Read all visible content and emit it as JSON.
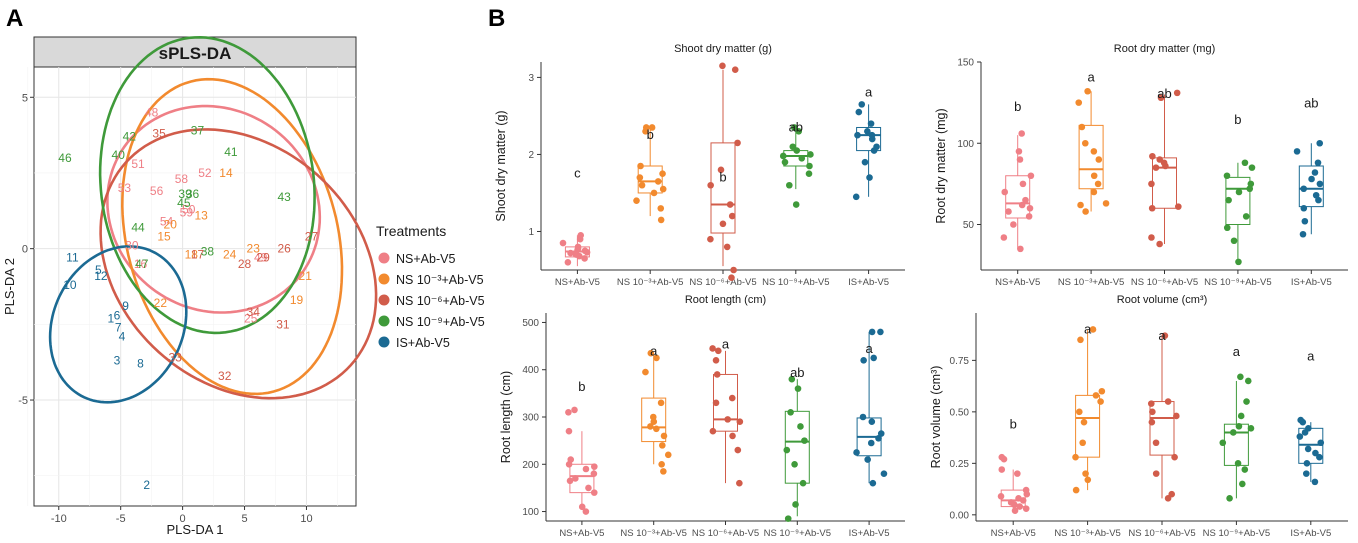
{
  "colors": {
    "NS+Ab-V5": "#ef7f86",
    "NS 10⁻³+Ab-V5": "#f28a2e",
    "NS 10⁻⁶+Ab-V5": "#d15c4a",
    "NS 10⁻⁹+Ab-V5": "#3f9a3a",
    "IS+Ab-V5": "#1b6a93"
  },
  "panel_a": {
    "letter": "A",
    "strip_title": "sPLS-DA",
    "legend_title": "Treatments",
    "legend_items": [
      "NS+Ab-V5",
      "NS 10⁻³+Ab-V5",
      "NS 10⁻⁶+Ab-V5",
      "NS 10⁻⁹+Ab-V5",
      "IS+Ab-V5"
    ]
  },
  "panel_b": {
    "letter": "B"
  },
  "chart_data": [
    {
      "type": "scatter",
      "title": "sPLS-DA",
      "xlabel": "PLS-DA 1",
      "ylabel": "PLS-DA 2",
      "xlim": [
        -12,
        14
      ],
      "ylim": [
        -8.5,
        6
      ],
      "xticks": [
        -10,
        -5,
        0,
        5,
        10
      ],
      "yticks": [
        -5,
        0,
        5
      ],
      "points": [
        {
          "label": "48",
          "x": -2.5,
          "y": 4.5,
          "group": 0
        },
        {
          "label": "51",
          "x": -3.6,
          "y": 2.8,
          "group": 0
        },
        {
          "label": "53",
          "x": -4.7,
          "y": 2,
          "group": 0
        },
        {
          "label": "56",
          "x": -2.1,
          "y": 1.9,
          "group": 0
        },
        {
          "label": "58",
          "x": -0.1,
          "y": 2.3,
          "group": 0
        },
        {
          "label": "54",
          "x": -1.3,
          "y": 0.9,
          "group": 0
        },
        {
          "label": "30",
          "x": -4.1,
          "y": 0.1,
          "group": 0
        },
        {
          "label": "50",
          "x": 0.5,
          "y": 1.3,
          "group": 0
        },
        {
          "label": "59",
          "x": 0.3,
          "y": 1.2,
          "group": 0
        },
        {
          "label": "52",
          "x": 1.8,
          "y": 2.5,
          "group": 0
        },
        {
          "label": "49",
          "x": 6.3,
          "y": -0.3,
          "group": 0
        },
        {
          "label": "16",
          "x": -3.4,
          "y": -0.5,
          "group": 0
        },
        {
          "label": "25",
          "x": 5.5,
          "y": -2.3,
          "group": 0
        },
        {
          "label": "14",
          "x": 3.5,
          "y": 2.5,
          "group": 1
        },
        {
          "label": "20",
          "x": -1,
          "y": 0.8,
          "group": 1
        },
        {
          "label": "15",
          "x": -1.5,
          "y": 0.4,
          "group": 1
        },
        {
          "label": "13",
          "x": 1.5,
          "y": 1.1,
          "group": 1
        },
        {
          "label": "23",
          "x": 5.7,
          "y": 0,
          "group": 1
        },
        {
          "label": "24",
          "x": 3.8,
          "y": -0.2,
          "group": 1
        },
        {
          "label": "18",
          "x": 0.7,
          "y": -0.2,
          "group": 1
        },
        {
          "label": "21",
          "x": 9.9,
          "y": -0.9,
          "group": 1
        },
        {
          "label": "19",
          "x": 9.2,
          "y": -1.7,
          "group": 1
        },
        {
          "label": "22",
          "x": -1.8,
          "y": -1.8,
          "group": 1
        },
        {
          "label": "35",
          "x": -1.9,
          "y": 3.8,
          "group": 2
        },
        {
          "label": "27",
          "x": 10.4,
          "y": 0.4,
          "group": 2
        },
        {
          "label": "26",
          "x": 8.2,
          "y": 0,
          "group": 2
        },
        {
          "label": "29",
          "x": 6.5,
          "y": -0.3,
          "group": 2
        },
        {
          "label": "28",
          "x": 5,
          "y": -0.5,
          "group": 2
        },
        {
          "label": "17",
          "x": 1.2,
          "y": -0.2,
          "group": 2
        },
        {
          "label": "34",
          "x": 5.7,
          "y": -2.1,
          "group": 2
        },
        {
          "label": "31",
          "x": 8.1,
          "y": -2.5,
          "group": 2
        },
        {
          "label": "33",
          "x": -0.6,
          "y": -3.6,
          "group": 2
        },
        {
          "label": "32",
          "x": 3.4,
          "y": -4.2,
          "group": 2
        },
        {
          "label": "37",
          "x": 1.2,
          "y": 3.9,
          "group": 3
        },
        {
          "label": "42",
          "x": -4.3,
          "y": 3.7,
          "group": 3
        },
        {
          "label": "41",
          "x": 3.9,
          "y": 3.2,
          "group": 3
        },
        {
          "label": "40",
          "x": -5.2,
          "y": 3.1,
          "group": 3
        },
        {
          "label": "46",
          "x": -9.5,
          "y": 3,
          "group": 3
        },
        {
          "label": "39",
          "x": 0.2,
          "y": 1.8,
          "group": 3
        },
        {
          "label": "36",
          "x": 0.8,
          "y": 1.8,
          "group": 3
        },
        {
          "label": "45",
          "x": 0.1,
          "y": 1.5,
          "group": 3
        },
        {
          "label": "43",
          "x": 8.2,
          "y": 1.7,
          "group": 3
        },
        {
          "label": "44",
          "x": -3.6,
          "y": 0.7,
          "group": 3
        },
        {
          "label": "47",
          "x": -3.3,
          "y": -0.5,
          "group": 3
        },
        {
          "label": "38",
          "x": 2,
          "y": -0.1,
          "group": 3
        },
        {
          "label": "11",
          "x": -8.9,
          "y": -0.3,
          "group": 4
        },
        {
          "label": "5",
          "x": -6.8,
          "y": -0.7,
          "group": 4
        },
        {
          "label": "12",
          "x": -6.6,
          "y": -0.9,
          "group": 4
        },
        {
          "label": "10",
          "x": -9.1,
          "y": -1.2,
          "group": 4
        },
        {
          "label": "9",
          "x": -4.6,
          "y": -1.9,
          "group": 4
        },
        {
          "label": "1",
          "x": -5.8,
          "y": -2.3,
          "group": 4
        },
        {
          "label": "6",
          "x": -5.3,
          "y": -2.2,
          "group": 4
        },
        {
          "label": "7",
          "x": -5.2,
          "y": -2.6,
          "group": 4
        },
        {
          "label": "4",
          "x": -4.9,
          "y": -2.9,
          "group": 4
        },
        {
          "label": "3",
          "x": -5.3,
          "y": -3.7,
          "group": 4
        },
        {
          "label": "8",
          "x": -3.4,
          "y": -3.8,
          "group": 4
        },
        {
          "label": "2",
          "x": -2.9,
          "y": -7.8,
          "group": 4
        }
      ],
      "ellipses": [
        {
          "group": 0,
          "cx": 2.5,
          "cy": 1.3,
          "rx": 8.1,
          "ry": 3.6,
          "angle": -55
        },
        {
          "group": 1,
          "cx": 4,
          "cy": 0.4,
          "rx": 8.5,
          "ry": 5.3,
          "angle": -15
        },
        {
          "group": 2,
          "cx": 4.5,
          "cy": -0.5,
          "rx": 9.6,
          "ry": 5,
          "angle": -48
        },
        {
          "group": 3,
          "cx": 2,
          "cy": 2.1,
          "rx": 8.6,
          "ry": 4.9,
          "angle": -7
        },
        {
          "group": 4,
          "cx": -5.2,
          "cy": -2.5,
          "rx": 6.5,
          "ry": 2.15,
          "angle": -65
        }
      ]
    },
    {
      "type": "box",
      "title": "Shoot dry matter (g)",
      "ylabel": "Shoot dry matter (g)",
      "categories": [
        "NS+Ab-V5",
        "NS 10⁻³+Ab-V5",
        "NS 10⁻⁶+Ab-V5",
        "NS 10⁻⁹+Ab-V5",
        "IS+Ab-V5"
      ],
      "ylim": [
        0.5,
        3.2
      ],
      "yticks": [
        1,
        2,
        3
      ],
      "letters": [
        "c",
        "b",
        "b",
        "ab",
        "a"
      ],
      "letter_y": [
        1.7,
        2.2,
        1.65,
        2.3,
        2.75
      ],
      "boxes": [
        {
          "min": 0.55,
          "q1": 0.67,
          "med": 0.74,
          "q3": 0.8,
          "max": 0.95
        },
        {
          "min": 1.2,
          "q1": 1.5,
          "med": 1.65,
          "q3": 1.85,
          "max": 2.35
        },
        {
          "min": 0.55,
          "q1": 0.98,
          "med": 1.35,
          "q3": 2.15,
          "max": 3.1
        },
        {
          "min": 1.55,
          "q1": 1.85,
          "med": 1.98,
          "q3": 2.05,
          "max": 2.3
        },
        {
          "min": 1.45,
          "q1": 2.05,
          "med": 2.25,
          "q3": 2.35,
          "max": 2.65
        }
      ],
      "points": [
        [
          0.6,
          0.65,
          0.68,
          0.7,
          0.72,
          0.73,
          0.75,
          0.76,
          0.78,
          0.8,
          0.85,
          0.9,
          0.95
        ],
        [
          1.15,
          1.3,
          1.4,
          1.5,
          1.55,
          1.6,
          1.65,
          1.7,
          1.75,
          1.85,
          2.3,
          2.35,
          2.35
        ],
        [
          0.4,
          0.5,
          0.8,
          0.9,
          1.1,
          1.2,
          1.35,
          1.6,
          1.8,
          2.15,
          3.1,
          3.15
        ],
        [
          1.35,
          1.6,
          1.75,
          1.85,
          1.9,
          1.95,
          1.98,
          2,
          2.05,
          2.1,
          2.3,
          2.35
        ],
        [
          1.45,
          1.7,
          1.9,
          2.05,
          2.1,
          2.2,
          2.25,
          2.25,
          2.3,
          2.4,
          2.55,
          2.65
        ]
      ]
    },
    {
      "type": "box",
      "title": "Root dry matter (mg)",
      "ylabel": "Root dry matter (mg)",
      "categories": [
        "NS+Ab-V5",
        "NS 10⁻³+Ab-V5",
        "NS 10⁻⁶+Ab-V5",
        "NS 10⁻⁹+Ab-V5",
        "IS+Ab-V5"
      ],
      "ylim": [
        22,
        150
      ],
      "yticks": [
        50,
        100,
        150
      ],
      "letters": [
        "b",
        "a",
        "ab",
        "b",
        "ab"
      ],
      "letter_y": [
        120,
        138,
        128,
        112,
        122
      ],
      "boxes": [
        {
          "min": 35,
          "q1": 54,
          "med": 63,
          "q3": 80,
          "max": 105
        },
        {
          "min": 58,
          "q1": 72,
          "med": 84,
          "q3": 111,
          "max": 132
        },
        {
          "min": 38,
          "q1": 60,
          "med": 85,
          "q3": 91,
          "max": 130
        },
        {
          "min": 28,
          "q1": 50,
          "med": 72,
          "q3": 79,
          "max": 88
        },
        {
          "min": 44,
          "q1": 61,
          "med": 72,
          "q3": 86,
          "max": 100
        }
      ],
      "points": [
        [
          35,
          42,
          50,
          55,
          58,
          60,
          62,
          65,
          70,
          75,
          80,
          90,
          95,
          106
        ],
        [
          58,
          62,
          63,
          70,
          75,
          80,
          90,
          95,
          100,
          110,
          125,
          132
        ],
        [
          38,
          42,
          60,
          61,
          75,
          85,
          86,
          88,
          90,
          92,
          128,
          131
        ],
        [
          27,
          40,
          48,
          55,
          65,
          70,
          72,
          75,
          80,
          85,
          88
        ],
        [
          44,
          52,
          60,
          65,
          68,
          72,
          75,
          78,
          82,
          88,
          95,
          100
        ]
      ]
    },
    {
      "type": "box",
      "title": "Root length (cm)",
      "ylabel": "Root length (cm)",
      "categories": [
        "NS+Ab-V5",
        "NS 10⁻³+Ab-V5",
        "NS 10⁻⁶+Ab-V5",
        "NS 10⁻⁹+Ab-V5",
        "IS+Ab-V5"
      ],
      "ylim": [
        80,
        520
      ],
      "yticks": [
        100,
        200,
        300,
        400,
        500
      ],
      "letters": [
        "b",
        "a",
        "a",
        "ab",
        "a"
      ],
      "letter_y": [
        355,
        430,
        445,
        385,
        435
      ],
      "boxes": [
        {
          "min": 105,
          "q1": 140,
          "med": 175,
          "q3": 200,
          "max": 270
        },
        {
          "min": 200,
          "q1": 248,
          "med": 278,
          "q3": 340,
          "max": 435
        },
        {
          "min": 160,
          "q1": 270,
          "med": 295,
          "q3": 390,
          "max": 440
        },
        {
          "min": 90,
          "q1": 160,
          "med": 248,
          "q3": 312,
          "max": 380
        },
        {
          "min": 160,
          "q1": 218,
          "med": 258,
          "q3": 298,
          "max": 480
        }
      ],
      "points": [
        [
          100,
          110,
          140,
          150,
          165,
          170,
          180,
          190,
          195,
          200,
          210,
          270,
          310,
          315
        ],
        [
          185,
          200,
          220,
          240,
          260,
          275,
          280,
          290,
          300,
          330,
          395,
          425,
          435
        ],
        [
          160,
          230,
          260,
          270,
          290,
          295,
          330,
          340,
          390,
          420,
          440,
          445
        ],
        [
          85,
          115,
          160,
          200,
          230,
          250,
          280,
          310,
          360,
          380
        ],
        [
          160,
          180,
          210,
          225,
          245,
          255,
          265,
          290,
          300,
          420,
          425,
          480,
          480
        ]
      ]
    },
    {
      "type": "box",
      "title": "Root volume (cm³)",
      "ylabel": "Root volume (cm³)",
      "categories": [
        "NS+Ab-V5",
        "NS 10⁻³+Ab-V5",
        "NS 10⁻⁶+Ab-V5",
        "NS 10⁻⁹+Ab-V5",
        "IS+Ab-V5"
      ],
      "ylim": [
        -0.03,
        0.98
      ],
      "yticks": [
        0.0,
        0.25,
        0.5,
        0.75
      ],
      "letters": [
        "b",
        "a",
        "a",
        "a",
        "a"
      ],
      "letter_y": [
        0.42,
        0.88,
        0.85,
        0.77,
        0.75
      ],
      "boxes": [
        {
          "min": 0.02,
          "q1": 0.04,
          "med": 0.07,
          "q3": 0.12,
          "max": 0.22
        },
        {
          "min": 0.12,
          "q1": 0.28,
          "med": 0.47,
          "q3": 0.58,
          "max": 0.9
        },
        {
          "min": 0.08,
          "q1": 0.29,
          "med": 0.47,
          "q3": 0.55,
          "max": 0.87
        },
        {
          "min": 0.08,
          "q1": 0.24,
          "med": 0.4,
          "q3": 0.44,
          "max": 0.65
        },
        {
          "min": 0.16,
          "q1": 0.25,
          "med": 0.34,
          "q3": 0.42,
          "max": 0.45
        }
      ],
      "points": [
        [
          0.02,
          0.03,
          0.04,
          0.05,
          0.06,
          0.07,
          0.08,
          0.09,
          0.1,
          0.12,
          0.2,
          0.22,
          0.27,
          0.28
        ],
        [
          0.12,
          0.17,
          0.2,
          0.28,
          0.35,
          0.45,
          0.5,
          0.55,
          0.58,
          0.6,
          0.85,
          0.9
        ],
        [
          0.08,
          0.1,
          0.2,
          0.28,
          0.35,
          0.45,
          0.48,
          0.5,
          0.54,
          0.55,
          0.87
        ],
        [
          0.08,
          0.15,
          0.22,
          0.25,
          0.35,
          0.4,
          0.42,
          0.43,
          0.48,
          0.55,
          0.65,
          0.67
        ],
        [
          0.16,
          0.2,
          0.25,
          0.28,
          0.3,
          0.32,
          0.35,
          0.38,
          0.4,
          0.42,
          0.45,
          0.46
        ]
      ]
    }
  ]
}
